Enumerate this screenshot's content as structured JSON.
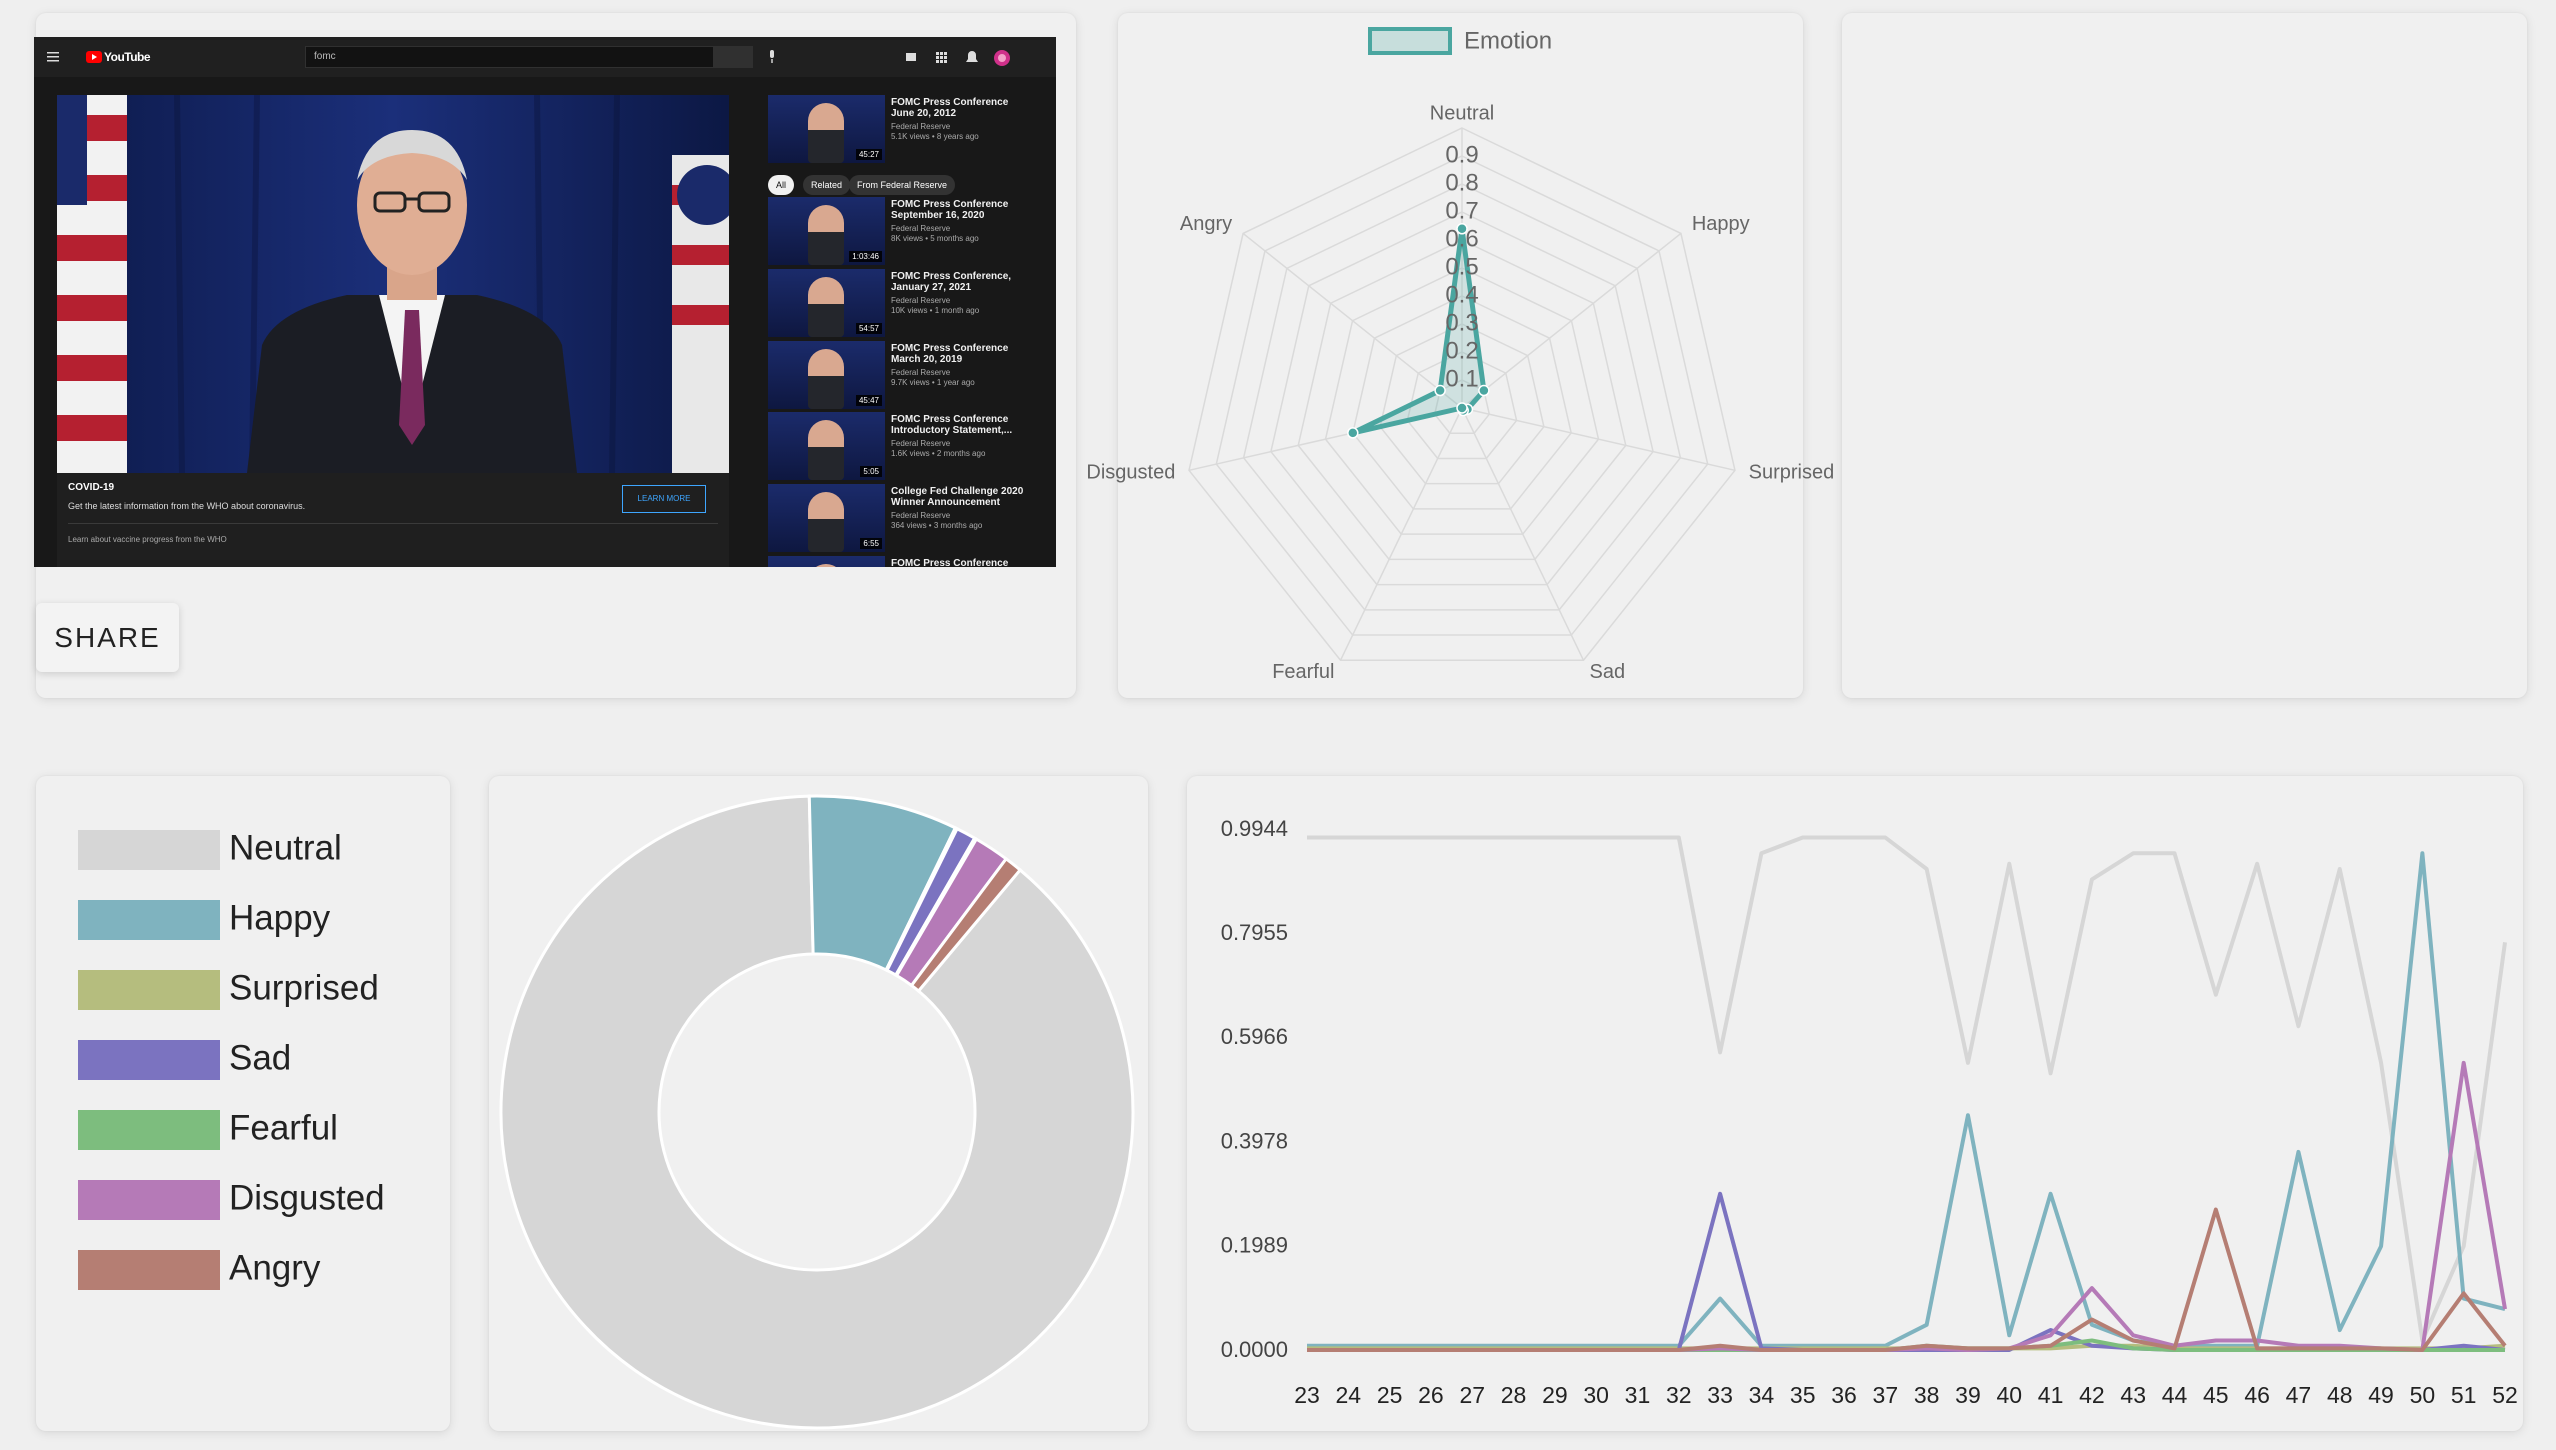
{
  "video": {
    "logo": "YouTube",
    "search": "fomc",
    "banner_title": "COVID-19",
    "banner_text": "Get the latest information from the WHO about coronavirus.",
    "banner_button": "LEARN MORE",
    "banner_link": "Learn about vaccine progress from the WHO",
    "chips": [
      "All",
      "Related",
      "From Federal Reserve"
    ],
    "sidebar": [
      {
        "title": "FOMC Press Conference June 20, 2012",
        "channel": "Federal Reserve",
        "meta": "5.1K views • 8 years ago",
        "duration": "45:27"
      },
      {
        "title": "FOMC Press Conference September 16, 2020",
        "channel": "Federal Reserve",
        "meta": "8K views • 5 months ago",
        "duration": "1:03:46"
      },
      {
        "title": "FOMC Press Conference, January 27, 2021",
        "channel": "Federal Reserve",
        "meta": "10K views • 1 month ago",
        "duration": "54:57"
      },
      {
        "title": "FOMC Press Conference March 20, 2019",
        "channel": "Federal Reserve",
        "meta": "9.7K views • 1 year ago",
        "duration": "45:47"
      },
      {
        "title": "FOMC Press Conference Introductory Statement,...",
        "channel": "Federal Reserve",
        "meta": "1.6K views • 2 months ago",
        "duration": "5:05"
      },
      {
        "title": "College Fed Challenge 2020 Winner Announcement",
        "channel": "Federal Reserve",
        "meta": "364 views • 3 months ago",
        "duration": "6:55"
      },
      {
        "title": "FOMC Press Conference"
      }
    ]
  },
  "share_button": "SHARE",
  "chart_data": [
    {
      "type": "radar",
      "categories": [
        "Neutral",
        "Happy",
        "Surprised",
        "Sad",
        "Fearful",
        "Disgusted",
        "Angry"
      ],
      "series": [
        {
          "name": "Emotion",
          "color": "#4aa6a0",
          "values": [
            0.64,
            0.1,
            0.02,
            0.01,
            0.0,
            0.4,
            0.1
          ]
        }
      ],
      "rlim": [
        0,
        1
      ],
      "rticks": [
        0.1,
        0.2,
        0.3,
        0.4,
        0.5,
        0.6,
        0.7,
        0.8,
        0.9
      ]
    },
    {
      "type": "doughnut",
      "categories": [
        "Neutral",
        "Happy",
        "Surprised",
        "Sad",
        "Fearful",
        "Disgusted",
        "Angry"
      ],
      "values": [
        88.5,
        7.6,
        0.1,
        1.0,
        0.1,
        1.8,
        0.9
      ],
      "colors": [
        "#d6d6d6",
        "#7fb3bf",
        "#b5bd7e",
        "#7b73c0",
        "#7dbd7e",
        "#b57ab7",
        "#b57e73"
      ]
    },
    {
      "type": "line",
      "x": [
        23,
        24,
        25,
        26,
        27,
        28,
        29,
        30,
        31,
        32,
        33,
        34,
        35,
        36,
        37,
        38,
        39,
        40,
        41,
        42,
        43,
        44,
        45,
        46,
        47,
        48,
        49,
        50,
        51,
        52
      ],
      "xlim": [
        23,
        52
      ],
      "xticks": [
        23,
        24,
        25,
        26,
        27,
        28,
        29,
        30,
        31,
        32,
        33,
        34,
        35,
        36,
        37,
        38,
        39,
        40,
        41,
        42,
        43,
        44,
        45,
        46,
        47,
        48,
        49,
        50,
        51,
        52
      ],
      "ylim": [
        0,
        0.9944
      ],
      "yticks": [
        {
          "value": 0,
          "label": "0.0000"
        },
        0.1989,
        0.3978,
        0.5966,
        0.7955,
        0.9944
      ],
      "series": [
        {
          "color": "#d6d6d6",
          "values": [
            0.98,
            0.98,
            0.98,
            0.98,
            0.98,
            0.98,
            0.98,
            0.98,
            0.98,
            0.98,
            0.57,
            0.95,
            0.98,
            0.98,
            0.98,
            0.92,
            0.55,
            0.93,
            0.53,
            0.9,
            0.95,
            0.95,
            0.68,
            0.93,
            0.62,
            0.92,
            0.55,
            0.02,
            0.2,
            0.78
          ]
        },
        {
          "color": "#7fb3bf",
          "values": [
            0.01,
            0.01,
            0.01,
            0.01,
            0.01,
            0.01,
            0.01,
            0.01,
            0.01,
            0.01,
            0.1,
            0.01,
            0.01,
            0.01,
            0.01,
            0.05,
            0.45,
            0.03,
            0.3,
            0.05,
            0.02,
            0.01,
            0.01,
            0.01,
            0.38,
            0.04,
            0.2,
            0.95,
            0.1,
            0.08
          ]
        },
        {
          "color": "#b5bd7e",
          "values": [
            0.005,
            0.005,
            0.005,
            0.005,
            0.005,
            0.005,
            0.005,
            0.005,
            0.005,
            0.005,
            0.005,
            0.005,
            0.005,
            0.005,
            0.005,
            0.005,
            0.005,
            0.005,
            0.005,
            0.01,
            0.01,
            0.005,
            0.005,
            0.005,
            0.005,
            0.005,
            0.005,
            0.005,
            0.005,
            0.01
          ]
        },
        {
          "color": "#7b73c0",
          "values": [
            0.002,
            0.002,
            0.002,
            0.002,
            0.002,
            0.002,
            0.002,
            0.002,
            0.002,
            0.002,
            0.3,
            0.005,
            0.002,
            0.002,
            0.002,
            0.002,
            0.002,
            0.002,
            0.04,
            0.01,
            0.005,
            0.002,
            0.002,
            0.002,
            0.002,
            0.002,
            0.002,
            0.002,
            0.01,
            0.002
          ]
        },
        {
          "color": "#7dbd7e",
          "values": [
            0.002,
            0.002,
            0.002,
            0.002,
            0.002,
            0.002,
            0.002,
            0.002,
            0.002,
            0.002,
            0.002,
            0.002,
            0.002,
            0.002,
            0.002,
            0.01,
            0.005,
            0.005,
            0.01,
            0.02,
            0.005,
            0.002,
            0.002,
            0.002,
            0.002,
            0.002,
            0.002,
            0.002,
            0.002,
            0.002
          ]
        },
        {
          "color": "#b57ab7",
          "values": [
            0.002,
            0.002,
            0.002,
            0.002,
            0.002,
            0.002,
            0.002,
            0.002,
            0.002,
            0.002,
            0.005,
            0.002,
            0.002,
            0.002,
            0.002,
            0.005,
            0.002,
            0.005,
            0.03,
            0.12,
            0.03,
            0.01,
            0.02,
            0.02,
            0.01,
            0.01,
            0.005,
            0.002,
            0.55,
            0.08
          ]
        },
        {
          "color": "#b57e73",
          "values": [
            0.002,
            0.002,
            0.002,
            0.002,
            0.002,
            0.002,
            0.002,
            0.002,
            0.002,
            0.002,
            0.01,
            0.002,
            0.002,
            0.002,
            0.002,
            0.01,
            0.005,
            0.005,
            0.01,
            0.06,
            0.02,
            0.005,
            0.27,
            0.005,
            0.005,
            0.005,
            0.005,
            0.002,
            0.11,
            0.01
          ]
        }
      ]
    }
  ]
}
